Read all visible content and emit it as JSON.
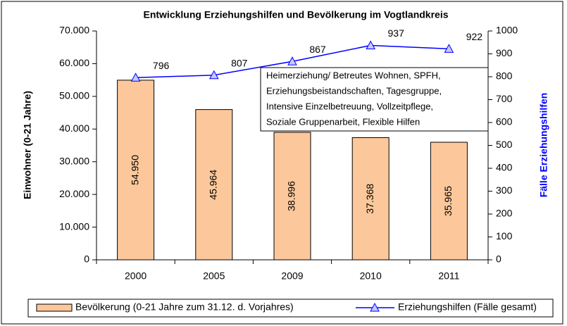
{
  "chart_data": {
    "type": "bar",
    "title": "Entwicklung Erziehungshilfen und Bevölkerung im Vogtlandkreis",
    "y_label": "Einwohner (0-21 Jahre)",
    "y2_label": "Fälle Erziehungshilfen",
    "categories": [
      "2000",
      "2005",
      "2009",
      "2010",
      "2011"
    ],
    "series": [
      {
        "name": "Bevölkerung (0-21 Jahre zum 31.12. d. Vorjahres)",
        "type": "bar",
        "color": "#fcc89b",
        "values": [
          54950,
          45964,
          38996,
          37368,
          35965
        ],
        "value_labels": [
          "54.950",
          "45.964",
          "38.996",
          "37.368",
          "35.965"
        ]
      },
      {
        "name": "Erziehungshilfen (Fälle gesamt)",
        "type": "line",
        "color": "#0000ff",
        "axis": "y2",
        "values": [
          796,
          807,
          867,
          937,
          922
        ]
      }
    ],
    "ylim": [
      0,
      70000
    ],
    "yticks": [
      0,
      {
        "value": 10000,
        "label": "10.000"
      },
      {
        "value": 20000,
        "label": "20.000"
      },
      {
        "value": 30000,
        "label": "30.000"
      },
      {
        "value": 40000,
        "label": "40.000"
      },
      {
        "value": 50000,
        "label": "50.000"
      },
      {
        "value": 60000,
        "label": "60.000"
      },
      {
        "value": 70000,
        "label": "70.000"
      }
    ],
    "y2lim": [
      0,
      1000
    ],
    "y2ticks": [
      0,
      100,
      200,
      300,
      400,
      500,
      600,
      700,
      800,
      900,
      1000
    ],
    "annotation": [
      "Heimerziehung/ Betreutes Wohnen, SPFH,",
      "Erziehungsbeistandschaften, Tagesgruppe,",
      "Intensive Einzelbetreuung, Vollzeitpflege,",
      "Soziale Gruppenarbeit, Flexible Hilfen"
    ],
    "legend": "bottom"
  }
}
